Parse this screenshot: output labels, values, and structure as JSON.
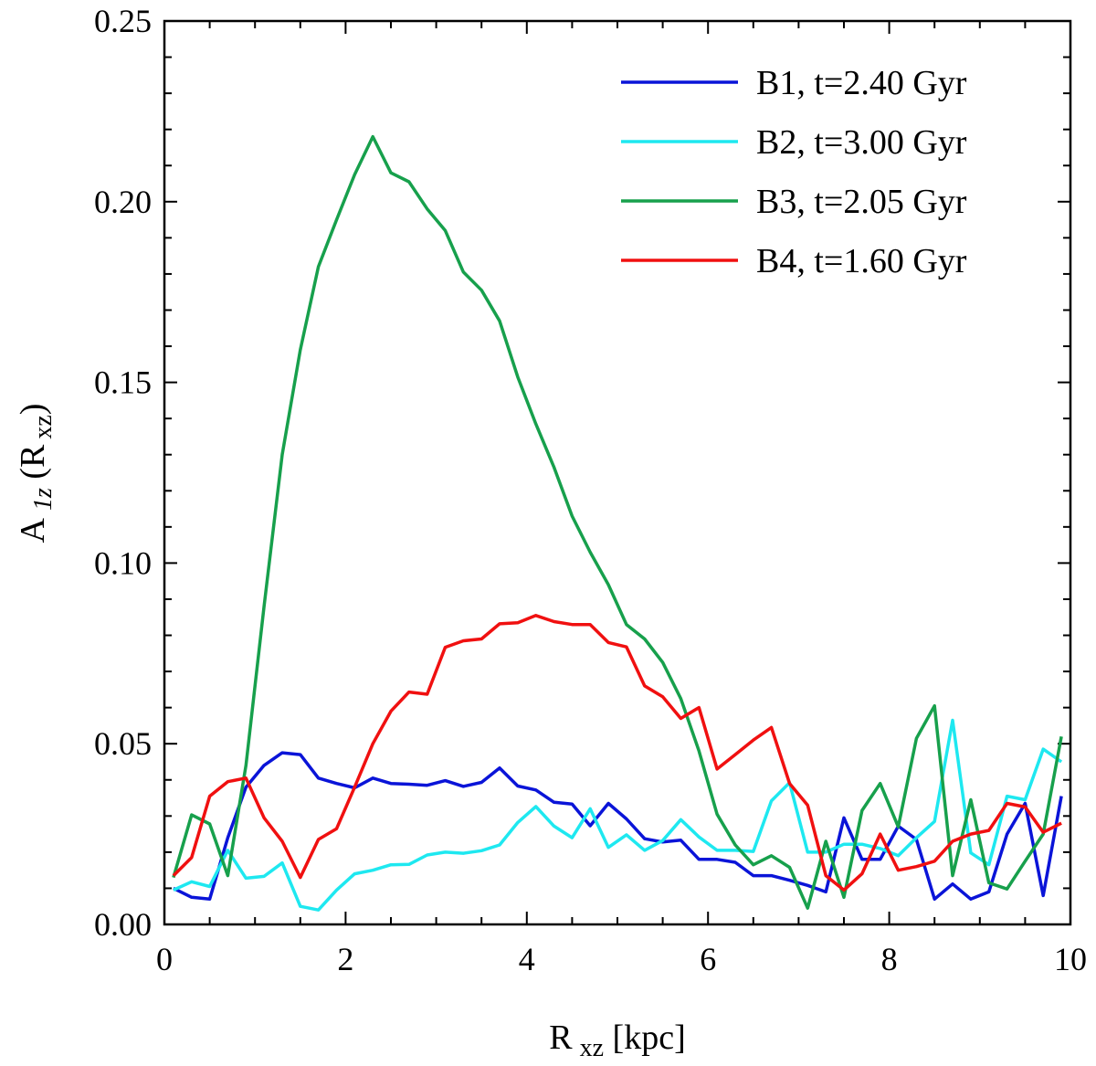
{
  "chart_data": {
    "type": "line",
    "title": "",
    "xlabel": {
      "main": "R",
      "sub": "xz",
      "rest": " [kpc]"
    },
    "ylabel": {
      "main": "A",
      "sub": "1z",
      "rest": " (R",
      "sub2": "xz",
      "close": ")"
    },
    "xlim": [
      0,
      10
    ],
    "ylim": [
      0,
      0.25
    ],
    "xticks": [
      0,
      2,
      4,
      6,
      8,
      10
    ],
    "xtick_labels": [
      "0",
      "2",
      "4",
      "6",
      "8",
      "10"
    ],
    "yticks": [
      0,
      0.05,
      0.1,
      0.15,
      0.2,
      0.25
    ],
    "ytick_labels": [
      "0.00",
      "0.05",
      "0.10",
      "0.15",
      "0.20",
      "0.25"
    ],
    "grid": false,
    "legend_position": "top-right",
    "x": [
      0.1,
      0.3,
      0.5,
      0.7,
      0.9,
      1.1,
      1.3,
      1.5,
      1.7,
      1.9,
      2.1,
      2.3,
      2.5,
      2.7,
      2.9,
      3.1,
      3.3,
      3.5,
      3.7,
      3.9,
      4.1,
      4.3,
      4.5,
      4.7,
      4.9,
      5.1,
      5.3,
      5.5,
      5.7,
      5.9,
      6.1,
      6.3,
      6.5,
      6.7,
      6.9,
      7.1,
      7.3,
      7.5,
      7.7,
      7.9,
      8.1,
      8.3,
      8.5,
      8.7,
      8.9,
      9.1,
      9.3,
      9.5,
      9.7,
      9.9
    ],
    "series": [
      {
        "name": "B1, t=2.40 Gyr",
        "color": "#0a14d8",
        "values": [
          0.01,
          0.0075,
          0.007,
          0.024,
          0.038,
          0.044,
          0.0475,
          0.047,
          0.0405,
          0.039,
          0.0378,
          0.0405,
          0.039,
          0.0388,
          0.0385,
          0.0398,
          0.0382,
          0.0393,
          0.0433,
          0.0383,
          0.0372,
          0.0338,
          0.0333,
          0.0273,
          0.0335,
          0.0292,
          0.0237,
          0.0228,
          0.0233,
          0.018,
          0.018,
          0.0172,
          0.0135,
          0.0135,
          0.0122,
          0.0108,
          0.009,
          0.0295,
          0.018,
          0.018,
          0.0272,
          0.0235,
          0.007,
          0.0112,
          0.007,
          0.009,
          0.025,
          0.0335,
          0.008,
          0.0355
        ]
      },
      {
        "name": "B2, t=3.00 Gyr",
        "color": "#1ee8f0",
        "values": [
          0.0095,
          0.0118,
          0.0105,
          0.0205,
          0.0128,
          0.0133,
          0.017,
          0.005,
          0.004,
          0.0095,
          0.014,
          0.015,
          0.0165,
          0.0166,
          0.0192,
          0.02,
          0.0197,
          0.0204,
          0.022,
          0.0282,
          0.0326,
          0.0272,
          0.024,
          0.032,
          0.0213,
          0.0248,
          0.0205,
          0.0232,
          0.029,
          0.0242,
          0.0205,
          0.0205,
          0.0202,
          0.0342,
          0.0392,
          0.02,
          0.02,
          0.0222,
          0.0222,
          0.021,
          0.019,
          0.024,
          0.0285,
          0.0565,
          0.0198,
          0.0165,
          0.0355,
          0.0345,
          0.0485,
          0.045
        ]
      },
      {
        "name": "B3, t=2.05 Gyr",
        "color": "#17a04c",
        "values": [
          0.013,
          0.0303,
          0.0278,
          0.0135,
          0.044,
          0.088,
          0.13,
          0.159,
          0.182,
          0.195,
          0.2075,
          0.218,
          0.208,
          0.2055,
          0.198,
          0.192,
          0.1805,
          0.1755,
          0.167,
          0.1515,
          0.1385,
          0.1265,
          0.113,
          0.103,
          0.094,
          0.083,
          0.079,
          0.0725,
          0.0625,
          0.048,
          0.0305,
          0.022,
          0.0165,
          0.019,
          0.0158,
          0.0045,
          0.023,
          0.0075,
          0.0315,
          0.039,
          0.027,
          0.0515,
          0.0605,
          0.0135,
          0.0345,
          0.0115,
          0.0098,
          0.0175,
          0.025,
          0.052
        ]
      },
      {
        "name": "B4, t=1.60 Gyr",
        "color": "#f01010",
        "values": [
          0.0135,
          0.0185,
          0.0355,
          0.0395,
          0.0405,
          0.0295,
          0.023,
          0.013,
          0.0235,
          0.0265,
          0.038,
          0.05,
          0.059,
          0.0643,
          0.0637,
          0.0767,
          0.0785,
          0.079,
          0.0832,
          0.0835,
          0.0855,
          0.0838,
          0.083,
          0.083,
          0.078,
          0.0768,
          0.066,
          0.063,
          0.057,
          0.06,
          0.043,
          0.047,
          0.051,
          0.0545,
          0.039,
          0.033,
          0.0135,
          0.0095,
          0.014,
          0.025,
          0.015,
          0.016,
          0.0175,
          0.023,
          0.025,
          0.026,
          0.0335,
          0.0325,
          0.0255,
          0.028
        ]
      }
    ]
  }
}
